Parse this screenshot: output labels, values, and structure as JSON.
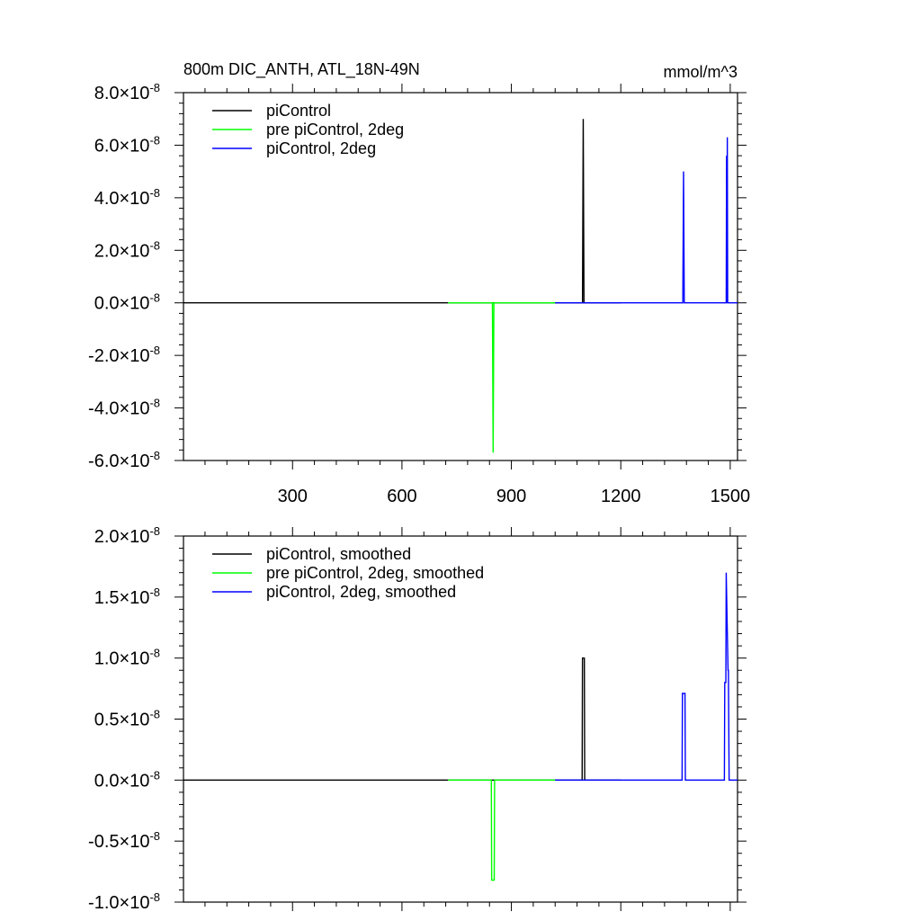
{
  "chart_data": [
    {
      "type": "line",
      "title": "800m DIC_ANTH, ATL_18N-49N",
      "units": "mmol/m^3",
      "xlim": [
        1,
        1520
      ],
      "ylim": [
        -6e-08,
        8e-08
      ],
      "exponent": "-8",
      "x_ticks": [
        300,
        600,
        900,
        1200,
        1500
      ],
      "x_tick_labels": [
        "300",
        "600",
        "900",
        "1200",
        "1500"
      ],
      "y_ticks": [
        8.0,
        6.0,
        4.0,
        2.0,
        0.0,
        -2.0,
        -4.0,
        -6.0
      ],
      "y_tick_labels": [
        "8.0",
        "6.0",
        "4.0",
        "2.0",
        "0.0",
        "-2.0",
        "-4.0",
        "-6.0"
      ],
      "legend_placement": "top-left",
      "series": [
        {
          "name": "piControl",
          "color": "#000000",
          "x": [
            1,
            1095,
            1097,
            1099,
            1200
          ],
          "y": [
            0,
            0,
            7e-08,
            0,
            0
          ]
        },
        {
          "name": "pre piControl, 2deg",
          "color": "#00ff00",
          "x": [
            726,
            848,
            850,
            852,
            1020
          ],
          "y": [
            0,
            0,
            -5.7e-08,
            0,
            0
          ]
        },
        {
          "name": "piControl, 2deg",
          "color": "#0000ff",
          "x": [
            1020,
            1370,
            1372,
            1374,
            1489,
            1490,
            1491,
            1492,
            1493,
            1494,
            1520
          ],
          "y": [
            0,
            0,
            5e-08,
            0,
            0,
            5.6e-08,
            0,
            6.3e-08,
            0,
            0,
            0
          ]
        }
      ]
    },
    {
      "type": "line",
      "xlim": [
        1,
        1520
      ],
      "ylim": [
        -1e-08,
        2e-08
      ],
      "exponent": "-8",
      "x_ticks": [
        300,
        600,
        900,
        1200,
        1500
      ],
      "y_ticks": [
        2.0,
        1.5,
        1.0,
        0.5,
        0.0,
        -0.5,
        -1.0
      ],
      "y_tick_labels": [
        "2.0",
        "1.5",
        "1.0",
        "0.5",
        "0.0",
        "-0.5",
        "-1.0"
      ],
      "legend_placement": "top-left",
      "series": [
        {
          "name": "piControl, smoothed",
          "color": "#000000",
          "x": [
            1,
            1094,
            1095,
            1100,
            1101,
            1200
          ],
          "y": [
            0,
            0,
            1e-08,
            1e-08,
            0,
            0
          ]
        },
        {
          "name": "pre piControl, 2deg, smoothed",
          "color": "#00ff00",
          "x": [
            726,
            845,
            846,
            853,
            854,
            1020
          ],
          "y": [
            0,
            0,
            -8.2e-09,
            -8.2e-09,
            0,
            0
          ]
        },
        {
          "name": "piControl, 2deg, smoothed",
          "color": "#0000ff",
          "x": [
            1020,
            1368,
            1369,
            1376,
            1377,
            1484,
            1485,
            1488,
            1489,
            1494,
            1495,
            1497,
            1498,
            1520
          ],
          "y": [
            0,
            0,
            7.1e-09,
            7.1e-09,
            0,
            0,
            8e-09,
            8e-09,
            1.7e-08,
            9e-09,
            9e-09,
            0,
            0,
            0
          ]
        }
      ]
    }
  ]
}
